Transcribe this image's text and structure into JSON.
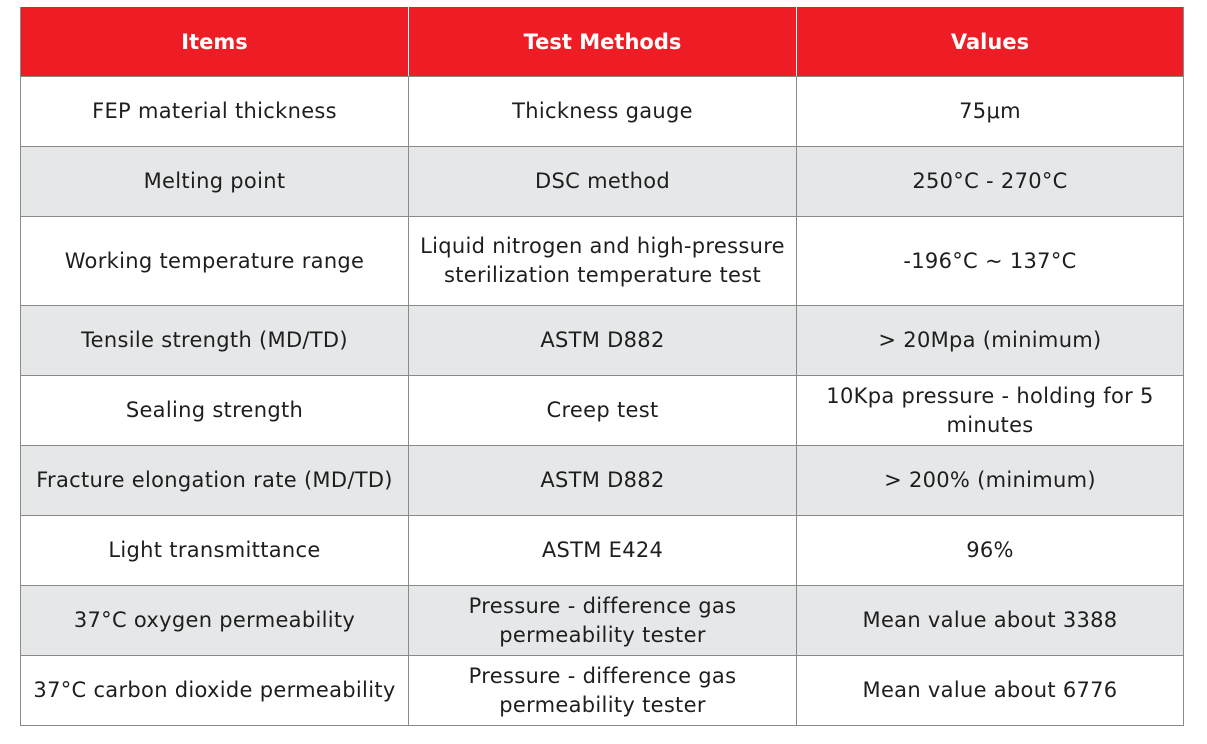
{
  "table": {
    "headers": [
      "Items",
      "Test Methods",
      "Values"
    ],
    "rows": [
      [
        "FEP material thickness",
        "Thickness gauge",
        "75μm"
      ],
      [
        "Melting point",
        "DSC method",
        "250°C - 270°C"
      ],
      [
        "Working temperature range",
        "Liquid nitrogen and high-pressure sterilization temperature test",
        "-196°C ~ 137°C"
      ],
      [
        "Tensile strength (MD/TD)",
        "ASTM D882",
        "> 20Mpa (minimum)"
      ],
      [
        "Sealing strength",
        "Creep test",
        "10Kpa pressure - holding for 5 minutes"
      ],
      [
        "Fracture elongation rate (MD/TD)",
        "ASTM D882",
        "> 200% (minimum)"
      ],
      [
        "Light transmittance",
        "ASTM E424",
        "96%"
      ],
      [
        "37°C oxygen permeability",
        "Pressure - difference gas permeability tester",
        "Mean value about 3388"
      ],
      [
        "37°C carbon dioxide permeability",
        "Pressure - difference gas permeability tester",
        "Mean value about 6776"
      ]
    ]
  },
  "colors": {
    "header_background": "#ee1c25",
    "header_text": "#ffffff",
    "shaded_row": "#e6e7e8",
    "border": "#8a8a8a"
  }
}
